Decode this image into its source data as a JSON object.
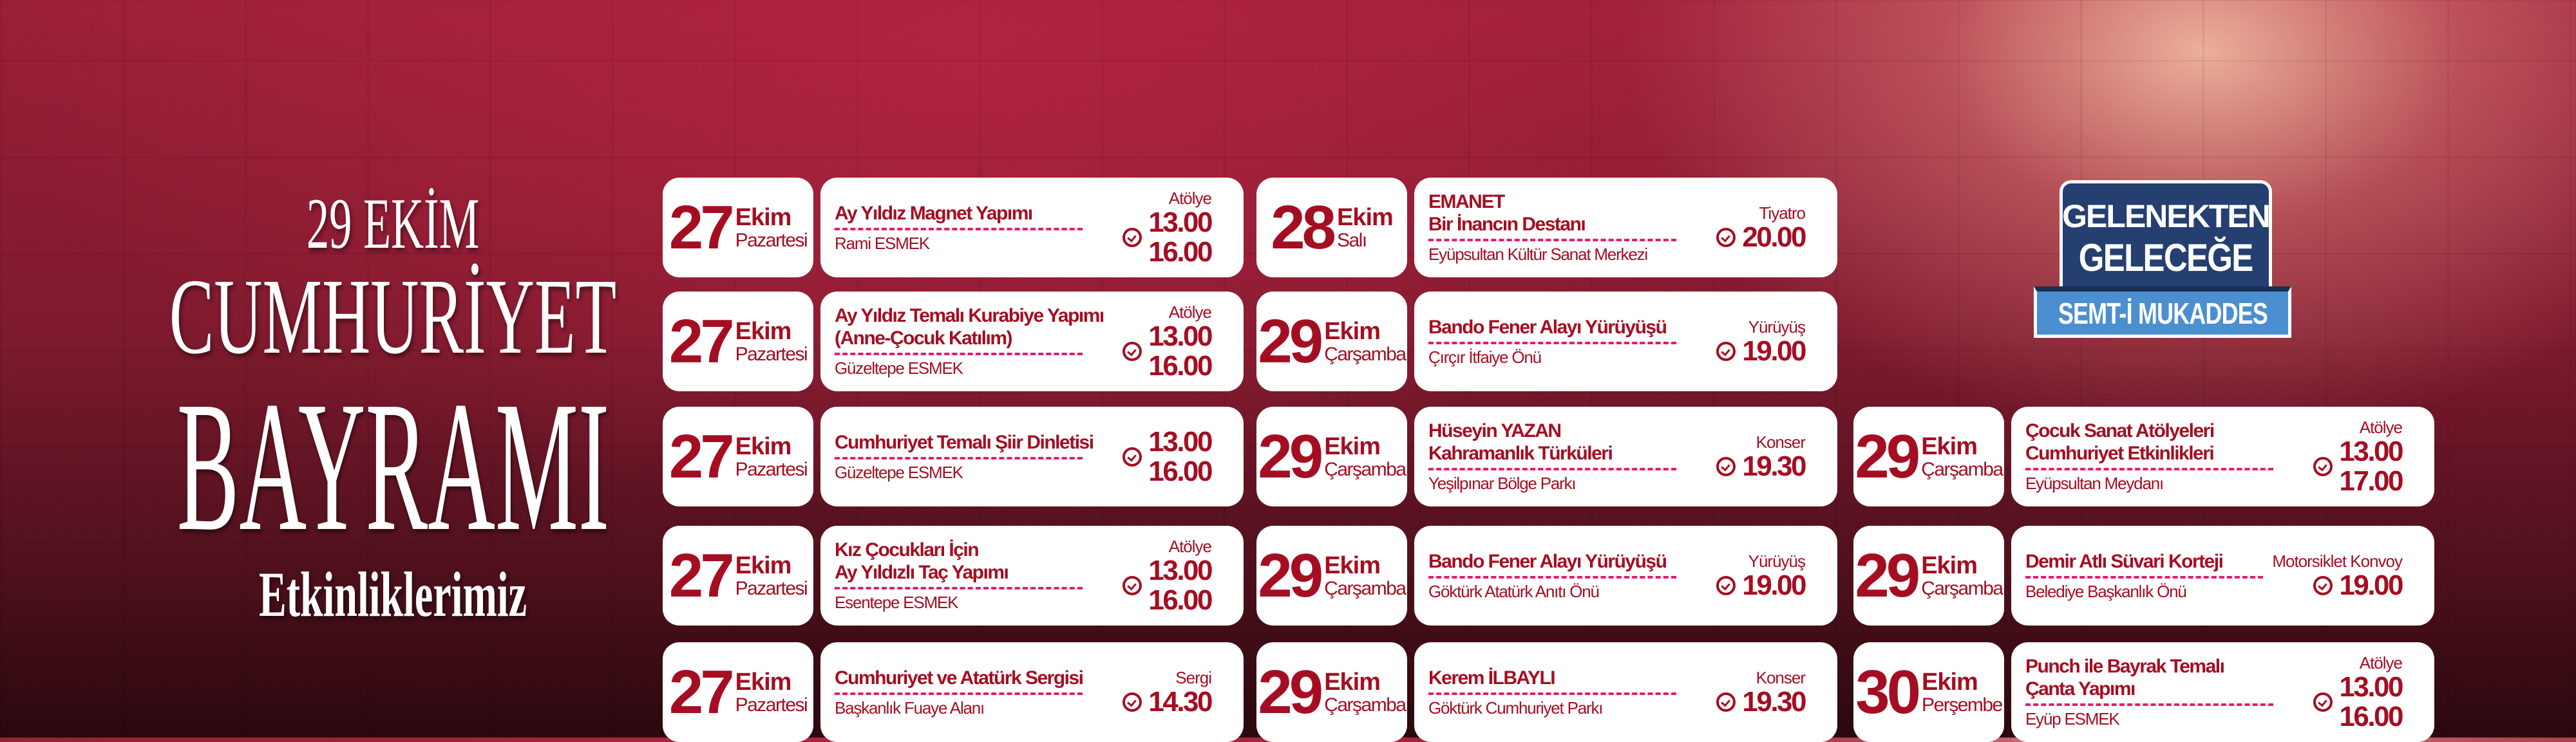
{
  "hero": {
    "line1": "29 EKİM",
    "line2": "CUMHURİYET",
    "line3": "BAYRAMI",
    "line4": "Etkinliklerimiz"
  },
  "logo": {
    "line1": "GELENEKTEN",
    "line2": "GELECEĞE",
    "band": "SEMT-İ MUKADDES",
    "colors": {
      "navy": "#243f70",
      "blue": "#4b8fd0"
    }
  },
  "colors": {
    "text": "#a50e22",
    "dash": "#e8196a",
    "card": "#ffffff"
  },
  "columns": [
    [
      {
        "day": "27",
        "month": "Ekim",
        "weekday": "Pazartesi",
        "title": [
          "Ay Yıldız Magnet Yapımı"
        ],
        "place": "Rami ESMEK",
        "category": "Atölye",
        "times": [
          "13.00",
          "16.00"
        ]
      },
      {
        "day": "27",
        "month": "Ekim",
        "weekday": "Pazartesi",
        "title": [
          "Ay Yıldız Temalı Kurabiye Yapımı",
          "(Anne-Çocuk Katılım)"
        ],
        "place": "Güzeltepe ESMEK",
        "category": "Atölye",
        "times": [
          "13.00",
          "16.00"
        ]
      },
      {
        "day": "27",
        "month": "Ekim",
        "weekday": "Pazartesi",
        "title": [
          "Cumhuriyet Temalı Şiir Dinletisi"
        ],
        "place": "Güzeltepe ESMEK",
        "category": "",
        "times": [
          "13.00",
          "16.00"
        ]
      },
      {
        "day": "27",
        "month": "Ekim",
        "weekday": "Pazartesi",
        "title": [
          "Kız Çocukları İçin",
          "Ay Yıldızlı Taç Yapımı"
        ],
        "place": "Esentepe ESMEK",
        "category": "Atölye",
        "times": [
          "13.00",
          "16.00"
        ]
      },
      {
        "day": "27",
        "month": "Ekim",
        "weekday": "Pazartesi",
        "title": [
          "Cumhuriyet ve Atatürk Sergisi"
        ],
        "place": "Başkanlık Fuaye Alanı",
        "category": "Sergi",
        "times": [
          "14.30"
        ]
      }
    ],
    [
      {
        "day": "28",
        "month": "Ekim",
        "weekday": "Salı",
        "title": [
          "EMANET",
          "Bir İnancın Destanı"
        ],
        "place": "Eyüpsultan Kültür Sanat Merkezi",
        "category": "Tiyatro",
        "times": [
          "20.00"
        ]
      },
      {
        "day": "29",
        "month": "Ekim",
        "weekday": "Çarşamba",
        "title": [
          "Bando Fener Alayı Yürüyüşü"
        ],
        "place": "Çırçır İtfaiye Önü",
        "category": "Yürüyüş",
        "times": [
          "19.00"
        ]
      },
      {
        "day": "29",
        "month": "Ekim",
        "weekday": "Çarşamba",
        "title": [
          "Hüseyin YAZAN",
          "Kahramanlık Türküleri"
        ],
        "place": "Yeşilpınar Bölge Parkı",
        "category": "Konser",
        "times": [
          "19.30"
        ]
      },
      {
        "day": "29",
        "month": "Ekim",
        "weekday": "Çarşamba",
        "title": [
          "Bando Fener Alayı Yürüyüşü"
        ],
        "place": "Göktürk Atatürk Anıtı Önü",
        "category": "Yürüyüş",
        "times": [
          "19.00"
        ]
      },
      {
        "day": "29",
        "month": "Ekim",
        "weekday": "Çarşamba",
        "title": [
          "Kerem İLBAYLI"
        ],
        "place": "Göktürk Cumhuriyet Parkı",
        "category": "Konser",
        "times": [
          "19.30"
        ]
      }
    ],
    [
      {
        "day": "29",
        "month": "Ekim",
        "weekday": "Çarşamba",
        "title": [
          "Çocuk Sanat Atölyeleri",
          "Cumhuriyet Etkinlikleri"
        ],
        "place": "Eyüpsultan Meydanı",
        "category": "Atölye",
        "times": [
          "13.00",
          "17.00"
        ]
      },
      {
        "day": "29",
        "month": "Ekim",
        "weekday": "Çarşamba",
        "title": [
          "Demir Atlı Süvari Korteji"
        ],
        "place": "Belediye Başkanlık Önü",
        "category": "Motorsiklet Konvoy",
        "times": [
          "19.00"
        ]
      },
      {
        "day": "30",
        "month": "Ekim",
        "weekday": "Perşembe",
        "title": [
          "Punch ile Bayrak Temalı",
          "Çanta Yapımı"
        ],
        "place": "Eyüp ESMEK",
        "category": "Atölye",
        "times": [
          "13.00",
          "16.00"
        ]
      }
    ]
  ]
}
